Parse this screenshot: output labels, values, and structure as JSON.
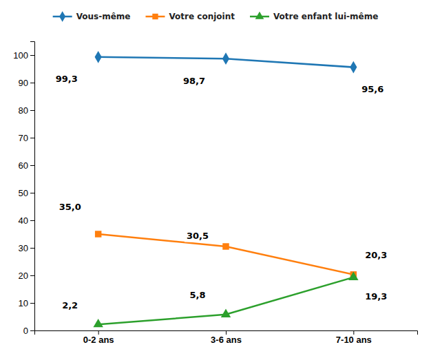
{
  "chart_data": {
    "type": "line",
    "categories": [
      "0-2 ans",
      "3-6 ans",
      "7-10 ans"
    ],
    "series": [
      {
        "name": "Vous-même",
        "marker": "diamond",
        "values": [
          99.3,
          98.7,
          95.6
        ],
        "value_labels": [
          "99,3",
          "98,7",
          "95,6"
        ]
      },
      {
        "name": "Votre conjoint",
        "marker": "square",
        "values": [
          35.0,
          30.5,
          20.3
        ],
        "value_labels": [
          "35,0",
          "30,5",
          "20,3"
        ]
      },
      {
        "name": "Votre enfant lui-même",
        "marker": "triangle",
        "values": [
          2.2,
          5.8,
          19.3
        ],
        "value_labels": [
          "2,2",
          "5,8",
          "19,3"
        ]
      }
    ],
    "ylim": [
      0,
      105
    ],
    "yticks": [
      0,
      10,
      20,
      30,
      40,
      50,
      60,
      70,
      80,
      90,
      100
    ],
    "data_labels": true,
    "legend": "top",
    "grid": false
  }
}
